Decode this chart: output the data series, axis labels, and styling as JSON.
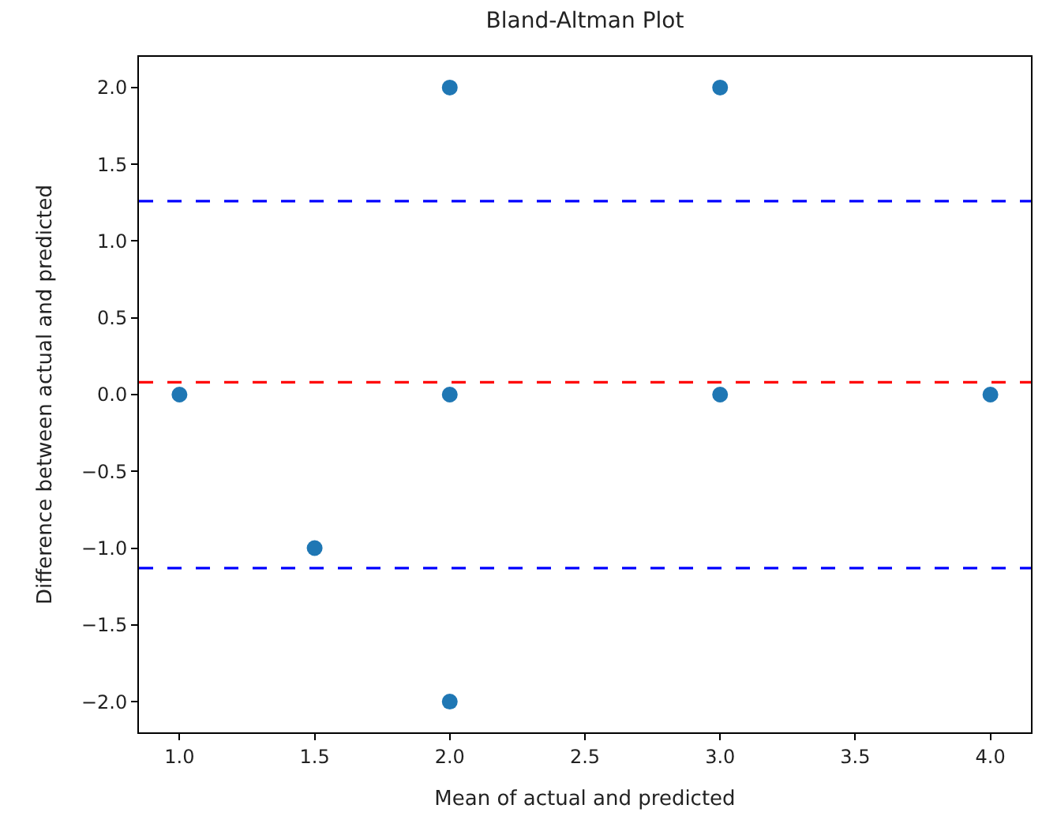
{
  "chart_data": {
    "type": "scatter",
    "title": "Bland-Altman Plot",
    "xlabel": "Mean of actual and predicted",
    "ylabel": "Difference between actual and predicted",
    "x": [
      1.0,
      1.5,
      2.0,
      2.0,
      2.0,
      3.0,
      3.0,
      4.0
    ],
    "series": [
      {
        "color": "#1f77b4",
        "values": [
          0.0,
          -1.0,
          2.0,
          0.0,
          -2.0,
          2.0,
          0.0,
          0.0
        ]
      }
    ],
    "marker": "circle",
    "xlim": [
      0.85,
      4.15
    ],
    "xticks": [
      {
        "value": 1.0,
        "label": "1.0"
      },
      {
        "value": 1.5,
        "label": "1.5"
      },
      {
        "value": 2.0,
        "label": "2.0"
      },
      {
        "value": 2.5,
        "label": "2.5"
      },
      {
        "value": 3.0,
        "label": "3.0"
      },
      {
        "value": 3.5,
        "label": "3.5"
      },
      {
        "value": 4.0,
        "label": "4.0"
      }
    ],
    "ylim": [
      -2.2,
      2.2
    ],
    "yticks": [
      {
        "value": -2.0,
        "label": "−2.0"
      },
      {
        "value": -1.5,
        "label": "−1.5"
      },
      {
        "value": -1.0,
        "label": "−1.0"
      },
      {
        "value": -0.5,
        "label": "−0.5"
      },
      {
        "value": 0.0,
        "label": "0.0"
      },
      {
        "value": 0.5,
        "label": "0.5"
      },
      {
        "value": 1.0,
        "label": "1.0"
      },
      {
        "value": 1.5,
        "label": "1.5"
      },
      {
        "value": 2.0,
        "label": "2.0"
      }
    ],
    "ref_lines": [
      {
        "axis": "y",
        "value": 0.08,
        "color": "#ff0000",
        "line_style": "dashed"
      },
      {
        "axis": "y",
        "value": 1.26,
        "color": "#0000ff",
        "line_style": "dashed"
      },
      {
        "axis": "y",
        "value": -1.13,
        "color": "#0000ff",
        "line_style": "dashed"
      }
    ]
  }
}
